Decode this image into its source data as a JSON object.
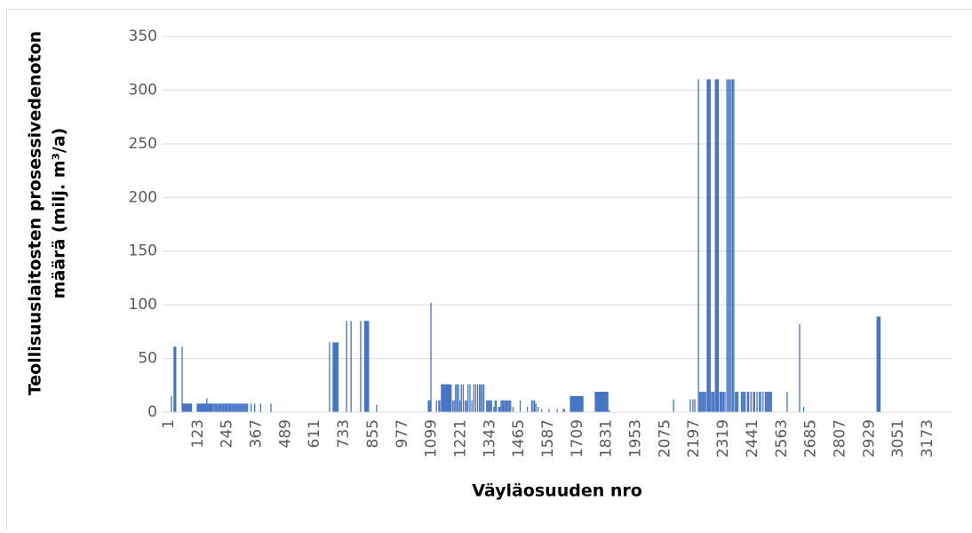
{
  "chart_data": {
    "type": "bar",
    "x_label": "Väyläosuuden nro",
    "y_label": [
      "Teollisuuslaitosten prosessivedenoton",
      "määrä (milj. m³/a)"
    ],
    "color": "#4472c4",
    "grid": true,
    "xlim": [
      -25,
      3277
    ],
    "ylim": [
      0,
      350
    ],
    "yticks": [
      0,
      50,
      100,
      150,
      200,
      250,
      300,
      350
    ],
    "xticks": [
      1,
      123,
      245,
      367,
      489,
      611,
      733,
      855,
      977,
      1099,
      1221,
      1343,
      1465,
      1587,
      1709,
      1831,
      1953,
      2075,
      2197,
      2319,
      2441,
      2563,
      2685,
      2807,
      2929,
      3051,
      3173
    ],
    "x": [
      12,
      23,
      27,
      30,
      57,
      60,
      64,
      68,
      72,
      76,
      80,
      84,
      88,
      92,
      96,
      120,
      124,
      128,
      132,
      136,
      140,
      144,
      148,
      152,
      156,
      160,
      164,
      168,
      172,
      176,
      180,
      184,
      190,
      195,
      200,
      205,
      210,
      215,
      220,
      225,
      230,
      235,
      240,
      245,
      250,
      255,
      260,
      265,
      270,
      275,
      280,
      285,
      290,
      295,
      300,
      305,
      310,
      315,
      320,
      325,
      330,
      345,
      360,
      385,
      428,
      673,
      688,
      692,
      696,
      700,
      704,
      708,
      744,
      763,
      803,
      820,
      824,
      828,
      832,
      836,
      870,
      1086,
      1090,
      1094,
      1097,
      1120,
      1130,
      1134,
      1141,
      1145,
      1149,
      1153,
      1157,
      1161,
      1165,
      1169,
      1173,
      1177,
      1181,
      1188,
      1194,
      1200,
      1206,
      1212,
      1218,
      1224,
      1232,
      1240,
      1246,
      1252,
      1260,
      1268,
      1276,
      1284,
      1292,
      1300,
      1306,
      1312,
      1318,
      1330,
      1335,
      1340,
      1345,
      1350,
      1360,
      1365,
      1370,
      1380,
      1385,
      1390,
      1395,
      1400,
      1405,
      1410,
      1415,
      1420,
      1425,
      1430,
      1440,
      1470,
      1500,
      1518,
      1524,
      1530,
      1536,
      1545,
      1560,
      1590,
      1625,
      1650,
      1655,
      1680,
      1684,
      1688,
      1692,
      1696,
      1700,
      1704,
      1708,
      1712,
      1716,
      1720,
      1724,
      1728,
      1732,
      1784,
      1788,
      1792,
      1796,
      1800,
      1804,
      1808,
      1812,
      1816,
      1820,
      1824,
      1828,
      1832,
      1836,
      1842,
      2111,
      2181,
      2192,
      2200,
      2215,
      2220,
      2225,
      2230,
      2235,
      2240,
      2245,
      2252,
      2256,
      2260,
      2264,
      2270,
      2275,
      2280,
      2286,
      2290,
      2294,
      2298,
      2305,
      2310,
      2315,
      2320,
      2326,
      2334,
      2340,
      2346,
      2352,
      2358,
      2363,
      2370,
      2375,
      2380,
      2395,
      2400,
      2405,
      2410,
      2420,
      2425,
      2435,
      2445,
      2450,
      2460,
      2470,
      2475,
      2485,
      2495,
      2500,
      2505,
      2510,
      2515,
      2520,
      2586,
      2638,
      2655,
      2962,
      2966,
      2970,
      2974
    ],
    "values": [
      15,
      61,
      61,
      61,
      61,
      8,
      8,
      8,
      8,
      8,
      8,
      8,
      8,
      8,
      8,
      8,
      8,
      8,
      8,
      8,
      8,
      8,
      8,
      8,
      8,
      13,
      8,
      8,
      8,
      8,
      8,
      8,
      8,
      8,
      8,
      8,
      8,
      8,
      8,
      8,
      8,
      8,
      8,
      8,
      8,
      8,
      8,
      8,
      8,
      8,
      8,
      8,
      8,
      8,
      8,
      8,
      8,
      8,
      8,
      8,
      8,
      8,
      8,
      8,
      8,
      65,
      65,
      65,
      65,
      65,
      65,
      65,
      85,
      85,
      85,
      85,
      85,
      85,
      85,
      85,
      7,
      11,
      11,
      11,
      102,
      11,
      11,
      11,
      26,
      26,
      26,
      26,
      26,
      26,
      26,
      26,
      26,
      26,
      26,
      11,
      11,
      26,
      26,
      26,
      11,
      26,
      26,
      11,
      11,
      26,
      26,
      11,
      26,
      26,
      26,
      26,
      26,
      26,
      26,
      11,
      11,
      11,
      11,
      11,
      5,
      11,
      11,
      5,
      5,
      11,
      11,
      11,
      11,
      11,
      11,
      11,
      11,
      11,
      5,
      11,
      5,
      11,
      11,
      11,
      8,
      5,
      3,
      3,
      3,
      3,
      3,
      15,
      15,
      15,
      15,
      15,
      15,
      15,
      15,
      15,
      15,
      15,
      15,
      15,
      15,
      19,
      19,
      19,
      19,
      19,
      19,
      19,
      19,
      19,
      19,
      19,
      19,
      19,
      19,
      2,
      12,
      12,
      12,
      12,
      310,
      19,
      19,
      19,
      19,
      19,
      19,
      310,
      310,
      310,
      310,
      19,
      19,
      19,
      310,
      310,
      310,
      310,
      19,
      19,
      19,
      19,
      19,
      310,
      310,
      310,
      310,
      310,
      310,
      19,
      19,
      19,
      19,
      19,
      19,
      19,
      19,
      19,
      19,
      19,
      19,
      19,
      19,
      19,
      19,
      19,
      19,
      19,
      19,
      19,
      19,
      19,
      82,
      5,
      89,
      89,
      89,
      89
    ]
  }
}
